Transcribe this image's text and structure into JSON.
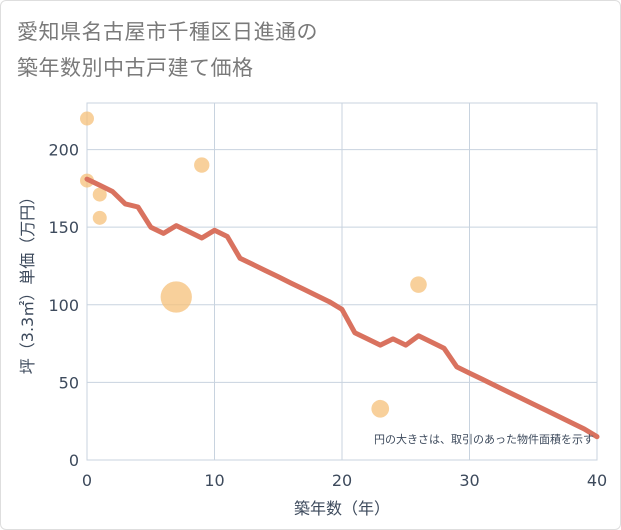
{
  "title": {
    "line1": "愛知県名古屋市千種区日進通の",
    "line2": "築年数別中古戸建て価格"
  },
  "colors": {
    "line": "#d9725f",
    "bubble": "#f5c07a",
    "grid": "#c8d3df",
    "text": "#3d4a5c"
  },
  "chart_data": {
    "type": "scatter",
    "xlabel": "築年数（年）",
    "ylabel": "坪（3.3㎡）単価（万円）",
    "xlim": [
      0,
      40
    ],
    "ylim": [
      0,
      230
    ],
    "xticks": [
      0,
      10,
      20,
      30,
      40
    ],
    "yticks": [
      0,
      50,
      100,
      150,
      200
    ],
    "grid": true,
    "note": "円の大きさは、取引のあった物件面積を示す",
    "bubbles": [
      {
        "x": 0,
        "y": 220,
        "size": 1
      },
      {
        "x": 0,
        "y": 180,
        "size": 1
      },
      {
        "x": 1,
        "y": 171,
        "size": 1
      },
      {
        "x": 1,
        "y": 156,
        "size": 1
      },
      {
        "x": 7,
        "y": 105,
        "size": 5
      },
      {
        "x": 9,
        "y": 190,
        "size": 1.2
      },
      {
        "x": 23,
        "y": 33,
        "size": 1.6
      },
      {
        "x": 26,
        "y": 113,
        "size": 1.4
      }
    ],
    "line": {
      "x": [
        0,
        1,
        2,
        3,
        4,
        5,
        6,
        7,
        8,
        9,
        10,
        11,
        12,
        13,
        14,
        15,
        16,
        17,
        18,
        19,
        20,
        21,
        22,
        23,
        24,
        25,
        26,
        27,
        28,
        29,
        30,
        31,
        32,
        33,
        34,
        35,
        36,
        37,
        38,
        39,
        40
      ],
      "y": [
        181,
        177,
        173,
        165,
        163,
        150,
        146,
        151,
        147,
        143,
        148,
        144,
        130,
        126,
        122,
        118,
        114,
        110,
        106,
        102,
        97,
        82,
        78,
        74,
        78,
        74,
        80,
        76,
        72,
        60,
        56,
        52,
        48,
        44,
        40,
        36,
        32,
        28,
        24,
        20,
        15
      ]
    }
  }
}
